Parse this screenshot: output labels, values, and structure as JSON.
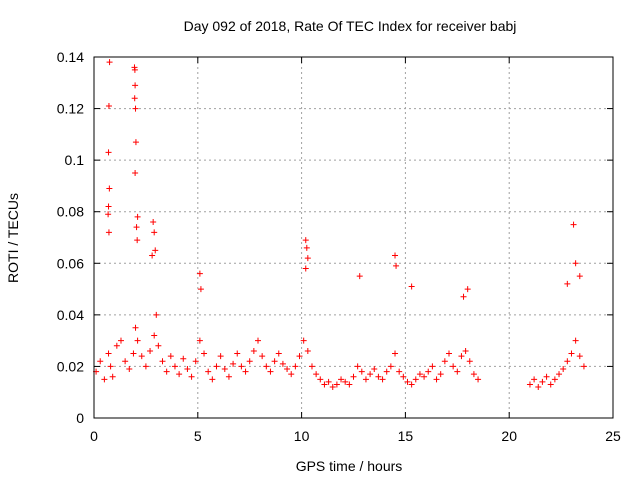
{
  "chart_data": {
    "type": "scatter",
    "title": "Day 092 of 2018, Rate Of TEC Index for receiver babj",
    "xlabel": "GPS time / hours",
    "ylabel": "ROTI / TECUs",
    "xlim": [
      0,
      25
    ],
    "ylim": [
      0,
      0.14
    ],
    "xticks": [
      0,
      5,
      10,
      15,
      20,
      25
    ],
    "xtick_labels": [
      "0",
      "5",
      "10",
      "15",
      "20",
      "25"
    ],
    "yticks": [
      0,
      0.02,
      0.04,
      0.06,
      0.08,
      0.1,
      0.12,
      0.14
    ],
    "ytick_labels": [
      "0",
      "0.02",
      "0.04",
      "0.06",
      "0.08",
      "0.1",
      "0.12",
      "0.14"
    ],
    "grid": true,
    "marker": "+",
    "color": "#ff0000",
    "data_gap_hours": [
      18.6,
      20.8
    ],
    "series": [
      {
        "name": "ROTI",
        "x": [
          0.1,
          0.3,
          0.5,
          0.7,
          0.8,
          0.9,
          1.1,
          1.3,
          1.5,
          1.7,
          1.9,
          2.0,
          2.1,
          2.3,
          2.5,
          2.7,
          2.9,
          3.0,
          3.1,
          3.3,
          3.5,
          3.7,
          3.9,
          4.1,
          4.3,
          4.5,
          4.7,
          4.9,
          5.1,
          5.3,
          5.5,
          5.7,
          5.9,
          6.1,
          6.3,
          6.5,
          6.7,
          6.9,
          7.1,
          7.3,
          7.5,
          7.7,
          7.9,
          8.1,
          8.3,
          8.5,
          8.7,
          8.9,
          9.1,
          9.3,
          9.5,
          9.7,
          9.9,
          10.1,
          10.3,
          10.5,
          10.7,
          10.9,
          11.1,
          11.3,
          11.5,
          11.7,
          11.9,
          12.1,
          12.3,
          12.5,
          12.7,
          12.9,
          13.1,
          13.3,
          13.5,
          13.7,
          13.9,
          14.1,
          14.3,
          14.5,
          14.7,
          14.9,
          15.1,
          15.3,
          15.5,
          15.7,
          15.9,
          16.1,
          16.3,
          16.5,
          16.7,
          16.9,
          17.1,
          17.3,
          17.5,
          17.7,
          17.9,
          18.1,
          18.3,
          18.5,
          21.0,
          21.2,
          21.4,
          21.6,
          21.8,
          22.0,
          22.2,
          22.4,
          22.6,
          22.8,
          23.0,
          23.2,
          23.4,
          23.6
        ],
        "y": [
          0.018,
          0.022,
          0.015,
          0.025,
          0.02,
          0.016,
          0.028,
          0.03,
          0.022,
          0.019,
          0.025,
          0.035,
          0.03,
          0.024,
          0.02,
          0.026,
          0.032,
          0.04,
          0.028,
          0.022,
          0.018,
          0.024,
          0.02,
          0.017,
          0.023,
          0.019,
          0.016,
          0.022,
          0.03,
          0.025,
          0.018,
          0.015,
          0.02,
          0.024,
          0.019,
          0.016,
          0.021,
          0.025,
          0.02,
          0.018,
          0.022,
          0.026,
          0.03,
          0.024,
          0.02,
          0.018,
          0.022,
          0.025,
          0.021,
          0.019,
          0.017,
          0.02,
          0.024,
          0.03,
          0.026,
          0.02,
          0.017,
          0.015,
          0.013,
          0.014,
          0.012,
          0.013,
          0.015,
          0.014,
          0.013,
          0.016,
          0.02,
          0.018,
          0.015,
          0.017,
          0.019,
          0.016,
          0.015,
          0.018,
          0.02,
          0.025,
          0.018,
          0.016,
          0.014,
          0.013,
          0.015,
          0.017,
          0.016,
          0.018,
          0.02,
          0.015,
          0.017,
          0.022,
          0.025,
          0.02,
          0.018,
          0.024,
          0.026,
          0.022,
          0.017,
          0.015,
          0.013,
          0.015,
          0.012,
          0.014,
          0.016,
          0.013,
          0.015,
          0.017,
          0.019,
          0.022,
          0.025,
          0.03,
          0.024,
          0.02
        ],
        "spikes": [
          {
            "x": 0.75,
            "y": 0.138
          },
          {
            "x": 0.72,
            "y": 0.121
          },
          {
            "x": 0.7,
            "y": 0.103
          },
          {
            "x": 0.74,
            "y": 0.089
          },
          {
            "x": 0.7,
            "y": 0.082
          },
          {
            "x": 0.68,
            "y": 0.079
          },
          {
            "x": 0.72,
            "y": 0.072
          },
          {
            "x": 1.95,
            "y": 0.136
          },
          {
            "x": 1.97,
            "y": 0.135
          },
          {
            "x": 1.98,
            "y": 0.129
          },
          {
            "x": 1.96,
            "y": 0.124
          },
          {
            "x": 2.0,
            "y": 0.12
          },
          {
            "x": 2.02,
            "y": 0.107
          },
          {
            "x": 1.98,
            "y": 0.095
          },
          {
            "x": 2.1,
            "y": 0.078
          },
          {
            "x": 2.05,
            "y": 0.074
          },
          {
            "x": 2.08,
            "y": 0.069
          },
          {
            "x": 2.85,
            "y": 0.076
          },
          {
            "x": 2.9,
            "y": 0.072
          },
          {
            "x": 2.95,
            "y": 0.065
          },
          {
            "x": 2.8,
            "y": 0.063
          },
          {
            "x": 10.2,
            "y": 0.069
          },
          {
            "x": 10.25,
            "y": 0.066
          },
          {
            "x": 10.3,
            "y": 0.062
          },
          {
            "x": 10.2,
            "y": 0.058
          },
          {
            "x": 12.8,
            "y": 0.055
          },
          {
            "x": 14.5,
            "y": 0.063
          },
          {
            "x": 14.55,
            "y": 0.059
          },
          {
            "x": 15.3,
            "y": 0.051
          },
          {
            "x": 5.1,
            "y": 0.056
          },
          {
            "x": 5.15,
            "y": 0.05
          },
          {
            "x": 23.1,
            "y": 0.075
          },
          {
            "x": 23.2,
            "y": 0.06
          },
          {
            "x": 23.4,
            "y": 0.055
          },
          {
            "x": 18.0,
            "y": 0.05
          },
          {
            "x": 17.8,
            "y": 0.047
          },
          {
            "x": 22.8,
            "y": 0.052
          }
        ]
      }
    ]
  }
}
